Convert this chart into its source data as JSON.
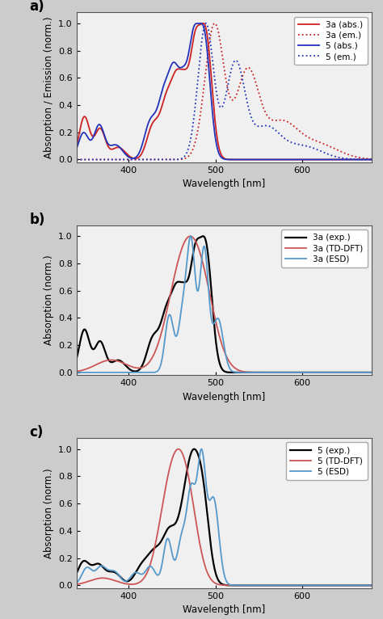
{
  "panel_a": {
    "ylabel": "Absorption / Emission (norm.)",
    "xlabel": "Wavelength [nm]",
    "xlim": [
      340,
      680
    ],
    "ylim": [
      -0.02,
      1.08
    ],
    "yticks": [
      0.0,
      0.2,
      0.4,
      0.6,
      0.8,
      1.0
    ],
    "xticks": [
      400,
      500,
      600
    ],
    "legend": [
      "3a (abs.)",
      "3a (em.)",
      "5 (abs.)",
      "5 (em.)"
    ],
    "colors_3a_abs": "#cc2222",
    "colors_3a_em": "#cc2222",
    "colors_5_abs": "#2233bb",
    "colors_5_em": "#2233bb"
  },
  "panel_b": {
    "ylabel": "Absorption (norm.)",
    "xlabel": "Wavelength [nm]",
    "xlim": [
      340,
      680
    ],
    "ylim": [
      -0.02,
      1.08
    ],
    "yticks": [
      0.0,
      0.2,
      0.4,
      0.6,
      0.8,
      1.0
    ],
    "xticks": [
      400,
      500,
      600
    ],
    "legend": [
      "3a (exp.)",
      "3a (TD-DFT)",
      "3a (ESD)"
    ],
    "color_exp": "#000000",
    "color_tddft": "#cc5555",
    "color_esd": "#5599cc"
  },
  "panel_c": {
    "ylabel": "Absorption (norm.)",
    "xlabel": "Wavelength [nm]",
    "xlim": [
      340,
      680
    ],
    "ylim": [
      -0.02,
      1.08
    ],
    "yticks": [
      0.0,
      0.2,
      0.4,
      0.6,
      0.8,
      1.0
    ],
    "xticks": [
      400,
      500,
      600
    ],
    "legend": [
      "5 (exp.)",
      "5 (TD-DFT)",
      "5 (ESD)"
    ],
    "color_exp": "#000000",
    "color_tddft": "#cc5555",
    "color_esd": "#5599cc"
  },
  "fig_bg": "#cccccc",
  "ax_bg": "#f0f0f0"
}
